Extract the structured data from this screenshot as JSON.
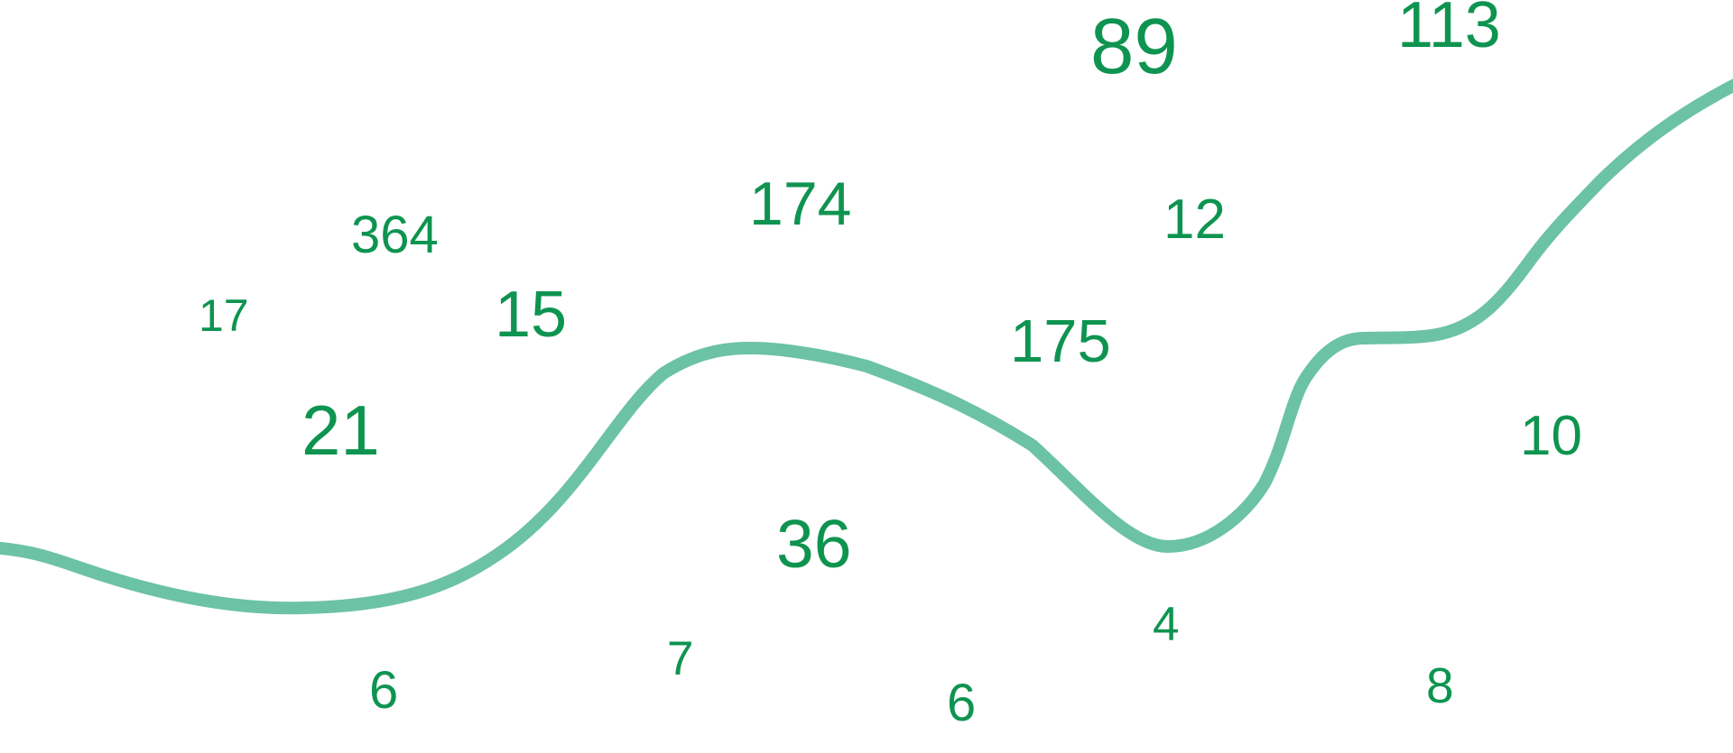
{
  "colors": {
    "number": "#0e9450",
    "curve": "#6cc2a5",
    "background": "#ffffff"
  },
  "numbers": [
    "89",
    "113",
    "364",
    "17",
    "15",
    "174",
    "21",
    "36",
    "7",
    "6",
    "12",
    "175",
    "10",
    "4",
    "8",
    "6"
  ]
}
